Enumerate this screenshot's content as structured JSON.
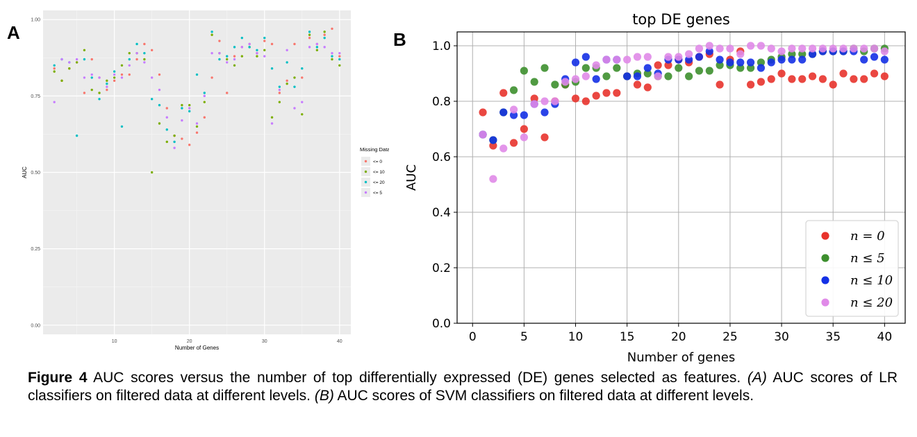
{
  "panels": {
    "a": "A",
    "b": "B"
  },
  "caption": {
    "label": "Figure 4",
    "s1": " AUC scores versus the number of top differentially expressed (DE) genes selected as features. ",
    "tag_a": "(A)",
    "s2": " AUC scores of LR classifiers on filtered data at different levels. ",
    "tag_b": "(B)",
    "s3": " AUC scores of SVM classifiers on filtered data at different levels."
  },
  "chart_data": [
    {
      "type": "scatter",
      "title": "",
      "xlabel": "Number of Genes",
      "ylabel": "AUC",
      "xlim": [
        0.5,
        41.5
      ],
      "ylim": [
        -0.03,
        1.03
      ],
      "x_ticks": [
        "10",
        "20",
        "30",
        "40"
      ],
      "x_tick_values": [
        10,
        20,
        30,
        40
      ],
      "y_ticks": [
        "0.00",
        "0.25",
        "0.50",
        "0.75",
        "1.00"
      ],
      "y_tick_values": [
        0,
        0.25,
        0.5,
        0.75,
        1.0
      ],
      "grid": true,
      "legend": {
        "title": "Missing Data Filter",
        "position": "right"
      },
      "series": [
        {
          "name": "<= 0",
          "color": "#F8766D",
          "x": [
            2,
            3,
            4,
            5,
            6,
            7,
            8,
            9,
            10,
            11,
            12,
            13,
            14,
            15,
            16,
            17,
            18,
            19,
            20,
            21,
            22,
            23,
            24,
            25,
            26,
            27,
            28,
            29,
            30,
            31,
            32,
            33,
            34,
            35,
            36,
            37,
            38,
            39,
            40
          ],
          "values": [
            0.84,
            0.8,
            0.84,
            0.86,
            0.76,
            0.87,
            0.81,
            0.77,
            0.8,
            0.82,
            0.82,
            0.87,
            0.92,
            0.9,
            0.82,
            0.71,
            0.62,
            0.61,
            0.59,
            0.63,
            0.68,
            0.81,
            0.93,
            0.76,
            0.88,
            0.91,
            0.92,
            0.89,
            0.93,
            0.92,
            0.76,
            0.8,
            0.92,
            0.81,
            0.94,
            0.92,
            0.95,
            0.97,
            0.88
          ]
        },
        {
          "name": "<= 10",
          "color": "#7CAE00",
          "x": [
            2,
            3,
            4,
            5,
            6,
            7,
            8,
            9,
            10,
            11,
            12,
            13,
            14,
            15,
            16,
            17,
            18,
            19,
            20,
            21,
            22,
            23,
            24,
            25,
            26,
            27,
            28,
            29,
            30,
            31,
            32,
            33,
            34,
            35,
            36,
            37,
            38,
            39,
            40
          ],
          "values": [
            0.83,
            0.8,
            0.84,
            0.86,
            0.9,
            0.77,
            0.76,
            0.8,
            0.81,
            0.85,
            0.89,
            0.89,
            0.87,
            0.5,
            0.66,
            0.6,
            0.62,
            0.72,
            0.72,
            0.65,
            0.73,
            0.95,
            0.89,
            0.87,
            0.85,
            0.88,
            0.91,
            0.88,
            0.9,
            0.68,
            0.73,
            0.79,
            0.81,
            0.69,
            0.95,
            0.9,
            0.96,
            0.87,
            0.85
          ]
        },
        {
          "name": "<= 20",
          "color": "#00BFC4",
          "x": [
            2,
            3,
            4,
            5,
            6,
            7,
            8,
            9,
            10,
            11,
            12,
            13,
            14,
            15,
            16,
            17,
            18,
            19,
            20,
            21,
            22,
            23,
            24,
            25,
            26,
            27,
            28,
            29,
            30,
            31,
            32,
            33,
            34,
            35,
            36,
            37,
            38,
            39,
            40
          ],
          "values": [
            0.85,
            0.87,
            0.86,
            0.62,
            0.87,
            0.81,
            0.74,
            0.79,
            0.83,
            0.65,
            0.87,
            0.92,
            0.89,
            0.74,
            0.72,
            0.64,
            0.6,
            0.71,
            0.7,
            0.82,
            0.76,
            0.96,
            0.87,
            0.88,
            0.91,
            0.94,
            0.91,
            0.9,
            0.94,
            0.84,
            0.78,
            0.86,
            0.78,
            0.84,
            0.96,
            0.91,
            0.94,
            0.88,
            0.87
          ]
        },
        {
          "name": "<= 5",
          "color": "#C77CFF",
          "x": [
            2,
            3,
            4,
            5,
            6,
            7,
            8,
            9,
            10,
            11,
            12,
            13,
            14,
            15,
            16,
            17,
            18,
            19,
            20,
            21,
            22,
            23,
            24,
            25,
            26,
            27,
            28,
            29,
            30,
            31,
            32,
            33,
            34,
            35,
            36,
            37,
            38,
            39,
            40
          ],
          "values": [
            0.73,
            0.87,
            0.86,
            0.87,
            0.81,
            0.82,
            0.81,
            0.78,
            0.82,
            0.81,
            0.85,
            0.89,
            0.86,
            0.81,
            0.77,
            0.68,
            0.58,
            0.67,
            0.71,
            0.66,
            0.75,
            0.89,
            0.89,
            0.86,
            0.87,
            0.91,
            0.92,
            0.89,
            0.88,
            0.66,
            0.77,
            0.9,
            0.71,
            0.73,
            0.91,
            0.92,
            0.91,
            0.89,
            0.89
          ]
        }
      ]
    },
    {
      "type": "scatter",
      "title": "top DE genes",
      "xlabel": "Number of genes",
      "ylabel": "AUC",
      "xlim": [
        -1.5,
        42
      ],
      "ylim": [
        0,
        1.05
      ],
      "x_ticks": [
        "0",
        "5",
        "10",
        "15",
        "20",
        "25",
        "30",
        "35",
        "40"
      ],
      "x_tick_values": [
        0,
        5,
        10,
        15,
        20,
        25,
        30,
        35,
        40
      ],
      "y_ticks": [
        "0.0",
        "0.2",
        "0.4",
        "0.6",
        "0.8",
        "1.0"
      ],
      "y_tick_values": [
        0,
        0.2,
        0.4,
        0.6,
        0.8,
        1.0
      ],
      "grid": true,
      "legend": {
        "position": "lower right"
      },
      "series": [
        {
          "name": "n = 0",
          "color": "#e8332c",
          "x": [
            1,
            2,
            3,
            4,
            5,
            6,
            7,
            8,
            9,
            10,
            11,
            12,
            13,
            14,
            15,
            16,
            17,
            18,
            19,
            20,
            21,
            22,
            23,
            24,
            25,
            26,
            27,
            28,
            29,
            30,
            31,
            32,
            33,
            34,
            35,
            36,
            37,
            38,
            39,
            40
          ],
          "values": [
            0.76,
            0.64,
            0.83,
            0.65,
            0.7,
            0.81,
            0.67,
            0.8,
            0.86,
            0.81,
            0.8,
            0.82,
            0.83,
            0.83,
            0.89,
            0.86,
            0.85,
            0.93,
            0.93,
            0.95,
            0.94,
            0.96,
            0.97,
            0.86,
            0.95,
            0.98,
            0.86,
            0.87,
            0.88,
            0.9,
            0.88,
            0.88,
            0.89,
            0.88,
            0.86,
            0.9,
            0.88,
            0.88,
            0.9,
            0.89
          ]
        },
        {
          "name": "n ≤ 5",
          "color": "#3d8f2e",
          "x": [
            1,
            2,
            3,
            4,
            5,
            6,
            7,
            8,
            9,
            10,
            11,
            12,
            13,
            14,
            15,
            16,
            17,
            18,
            19,
            20,
            21,
            22,
            23,
            24,
            25,
            26,
            27,
            28,
            29,
            30,
            31,
            32,
            33,
            34,
            35,
            36,
            37,
            38,
            39,
            40
          ],
          "values": [
            0.68,
            0.66,
            0.76,
            0.84,
            0.91,
            0.87,
            0.92,
            0.86,
            0.86,
            0.87,
            0.92,
            0.92,
            0.89,
            0.92,
            0.89,
            0.9,
            0.9,
            0.89,
            0.89,
            0.92,
            0.89,
            0.91,
            0.91,
            0.93,
            0.93,
            0.92,
            0.92,
            0.94,
            0.95,
            0.96,
            0.97,
            0.97,
            0.97,
            0.98,
            0.98,
            0.98,
            0.99,
            0.98,
            0.99,
            0.99
          ]
        },
        {
          "name": "n ≤ 10",
          "color": "#1430e6",
          "x": [
            1,
            2,
            3,
            4,
            5,
            6,
            7,
            8,
            9,
            10,
            11,
            12,
            13,
            14,
            15,
            16,
            17,
            18,
            19,
            20,
            21,
            22,
            23,
            24,
            25,
            26,
            27,
            28,
            29,
            30,
            31,
            32,
            33,
            34,
            35,
            36,
            37,
            38,
            39,
            40
          ],
          "values": [
            0.68,
            0.66,
            0.76,
            0.75,
            0.75,
            0.79,
            0.76,
            0.79,
            0.88,
            0.94,
            0.96,
            0.88,
            0.95,
            0.95,
            0.89,
            0.89,
            0.92,
            0.9,
            0.95,
            0.95,
            0.95,
            0.96,
            0.98,
            0.95,
            0.94,
            0.94,
            0.94,
            0.92,
            0.94,
            0.95,
            0.95,
            0.95,
            0.97,
            0.98,
            0.98,
            0.98,
            0.98,
            0.95,
            0.96,
            0.95
          ]
        },
        {
          "name": "n ≤ 20",
          "color": "#e08ae8",
          "x": [
            1,
            2,
            3,
            4,
            5,
            6,
            7,
            8,
            9,
            10,
            11,
            12,
            13,
            14,
            15,
            16,
            17,
            18,
            19,
            20,
            21,
            22,
            23,
            24,
            25,
            26,
            27,
            28,
            29,
            30,
            31,
            32,
            33,
            34,
            35,
            36,
            37,
            38,
            39,
            40
          ],
          "values": [
            0.68,
            0.52,
            0.63,
            0.77,
            0.67,
            0.79,
            0.8,
            0.8,
            0.87,
            0.88,
            0.89,
            0.93,
            0.95,
            0.95,
            0.95,
            0.96,
            0.96,
            0.89,
            0.96,
            0.96,
            0.97,
            0.99,
            1.0,
            0.99,
            0.99,
            0.97,
            1.0,
            1.0,
            0.99,
            0.98,
            0.99,
            0.99,
            0.99,
            0.99,
            0.99,
            0.99,
            0.99,
            0.99,
            0.99,
            0.98
          ]
        }
      ]
    }
  ]
}
